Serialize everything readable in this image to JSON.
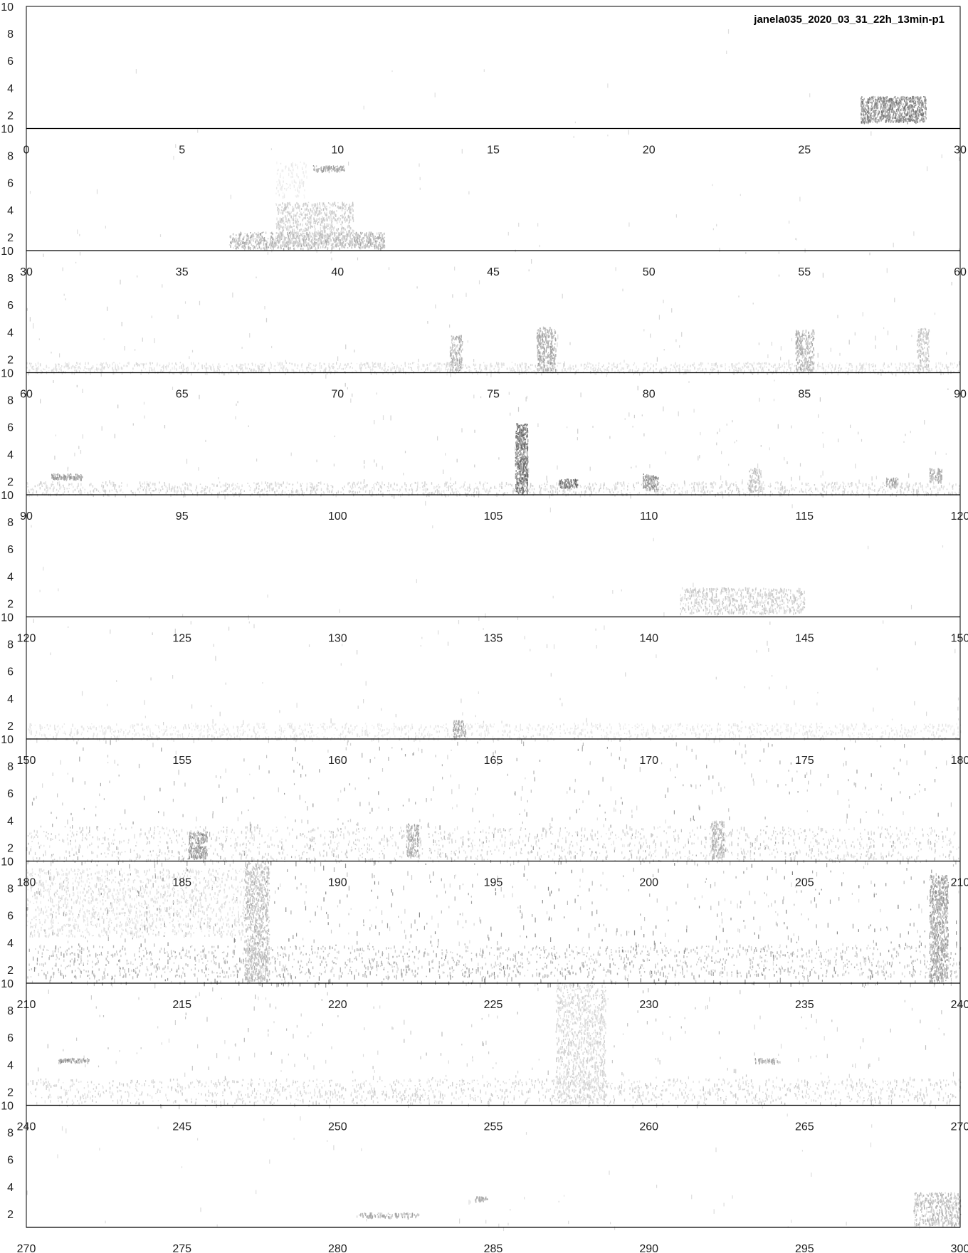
{
  "chart_data": {
    "type": "heatmap",
    "subtype": "spectrogram",
    "title": "janela035_2020_03_31_22h_13min-p1",
    "xlabel": "",
    "ylabel": "",
    "grid": false,
    "colors": {
      "background": "#ffffff",
      "ink": "#000000",
      "text": "#222222"
    },
    "y_ticks": [
      "2",
      "4",
      "6",
      "8",
      "10"
    ],
    "rows": [
      {
        "xlim": [
          0,
          30
        ],
        "x_ticks": [
          "0",
          "5",
          "10",
          "15",
          "20",
          "25",
          "30"
        ],
        "noise_level": 0.005,
        "events": [
          {
            "t": [
              26.8,
              28.9
            ],
            "f": [
              1.5,
              3.4
            ],
            "d": 0.7
          }
        ]
      },
      {
        "xlim": [
          30,
          60
        ],
        "x_ticks": [
          "30",
          "35",
          "40",
          "45",
          "50",
          "55",
          "60"
        ],
        "noise_level": 0.02,
        "events": [
          {
            "t": [
              36.5,
              41.5
            ],
            "f": [
              1.2,
              2.4
            ],
            "d": 0.45
          },
          {
            "t": [
              38.0,
              40.5
            ],
            "f": [
              1.4,
              4.6
            ],
            "d": 0.3
          },
          {
            "t": [
              39.2,
              40.2
            ],
            "f": [
              6.9,
              7.3
            ],
            "d": 0.55
          },
          {
            "t": [
              38.0,
              39.0
            ],
            "f": [
              5.0,
              7.6
            ],
            "d": 0.12
          }
        ]
      },
      {
        "xlim": [
          60,
          90
        ],
        "x_ticks": [
          "60",
          "65",
          "70",
          "75",
          "80",
          "85",
          "90"
        ],
        "noise_level": 0.06,
        "events": [
          {
            "t": [
              60.0,
              90.0
            ],
            "f": [
              1.0,
              1.8
            ],
            "d": 0.2
          },
          {
            "t": [
              73.6,
              74.0
            ],
            "f": [
              1.2,
              3.8
            ],
            "d": 0.45
          },
          {
            "t": [
              76.4,
              77.0
            ],
            "f": [
              1.2,
              4.4
            ],
            "d": 0.5
          },
          {
            "t": [
              84.7,
              85.3
            ],
            "f": [
              1.2,
              4.2
            ],
            "d": 0.45
          },
          {
            "t": [
              88.6,
              89.0
            ],
            "f": [
              1.2,
              4.3
            ],
            "d": 0.35
          }
        ]
      },
      {
        "xlim": [
          90,
          120
        ],
        "x_ticks": [
          "90",
          "95",
          "100",
          "105",
          "110",
          "115",
          "120"
        ],
        "noise_level": 0.08,
        "events": [
          {
            "t": [
              90.0,
              120.0
            ],
            "f": [
              1.0,
              2.0
            ],
            "d": 0.25
          },
          {
            "t": [
              90.8,
              91.8
            ],
            "f": [
              2.2,
              2.6
            ],
            "d": 0.6
          },
          {
            "t": [
              105.7,
              106.1
            ],
            "f": [
              1.2,
              6.3
            ],
            "d": 0.8
          },
          {
            "t": [
              107.1,
              107.7
            ],
            "f": [
              1.6,
              2.2
            ],
            "d": 0.8
          },
          {
            "t": [
              109.8,
              110.3
            ],
            "f": [
              1.4,
              2.6
            ],
            "d": 0.6
          },
          {
            "t": [
              113.2,
              113.6
            ],
            "f": [
              1.3,
              3.0
            ],
            "d": 0.4
          },
          {
            "t": [
              117.6,
              118.0
            ],
            "f": [
              1.6,
              2.3
            ],
            "d": 0.5
          },
          {
            "t": [
              119.0,
              119.4
            ],
            "f": [
              2.0,
              3.0
            ],
            "d": 0.5
          }
        ]
      },
      {
        "xlim": [
          120,
          150
        ],
        "x_ticks": [
          "120",
          "125",
          "130",
          "135",
          "140",
          "145",
          "150"
        ],
        "noise_level": 0.01,
        "events": [
          {
            "t": [
              141.0,
              145.0
            ],
            "f": [
              1.3,
              3.2
            ],
            "d": 0.3
          }
        ]
      },
      {
        "xlim": [
          150,
          180
        ],
        "x_ticks": [
          "150",
          "155",
          "160",
          "165",
          "170",
          "175",
          "180"
        ],
        "noise_level": 0.05,
        "events": [
          {
            "t": [
              150.0,
              180.0
            ],
            "f": [
              1.0,
              2.2
            ],
            "d": 0.15
          },
          {
            "t": [
              163.7,
              164.1
            ],
            "f": [
              1.2,
              2.4
            ],
            "d": 0.5
          }
        ]
      },
      {
        "xlim": [
          180,
          210
        ],
        "x_ticks": [
          "180",
          "185",
          "190",
          "195",
          "200",
          "205",
          "210"
        ],
        "noise_level": 0.25,
        "events": [
          {
            "t": [
              180.0,
              210.0
            ],
            "f": [
              1.0,
              3.6
            ],
            "d": 0.25
          },
          {
            "t": [
              185.2,
              185.8
            ],
            "f": [
              1.2,
              3.2
            ],
            "d": 0.6
          },
          {
            "t": [
              192.2,
              192.6
            ],
            "f": [
              1.4,
              3.8
            ],
            "d": 0.5
          },
          {
            "t": [
              202.0,
              202.4
            ],
            "f": [
              1.2,
              4.0
            ],
            "d": 0.45
          }
        ]
      },
      {
        "xlim": [
          210,
          240
        ],
        "x_ticks": [
          "210",
          "215",
          "220",
          "225",
          "230",
          "235",
          "240"
        ],
        "noise_level": 0.38,
        "events": [
          {
            "t": [
              210.0,
              240.0
            ],
            "f": [
              1.5,
              3.8
            ],
            "d": 0.4
          },
          {
            "t": [
              210.0,
              217.0
            ],
            "f": [
              4.5,
              9.5
            ],
            "d": 0.2
          },
          {
            "t": [
              217.0,
              217.8
            ],
            "f": [
              1.2,
              10.0
            ],
            "d": 0.4
          },
          {
            "t": [
              239.0,
              239.6
            ],
            "f": [
              1.2,
              9.0
            ],
            "d": 0.55
          }
        ]
      },
      {
        "xlim": [
          240,
          270
        ],
        "x_ticks": [
          "240",
          "245",
          "250",
          "255",
          "260",
          "265",
          "270"
        ],
        "noise_level": 0.14,
        "events": [
          {
            "t": [
              240.0,
              270.0
            ],
            "f": [
              1.2,
              3.0
            ],
            "d": 0.25
          },
          {
            "t": [
              241.0,
              242.0
            ],
            "f": [
              4.2,
              4.5
            ],
            "d": 0.6
          },
          {
            "t": [
              257.0,
              258.6
            ],
            "f": [
              1.2,
              10.0
            ],
            "d": 0.25
          },
          {
            "t": [
              263.4,
              264.2
            ],
            "f": [
              4.2,
              4.5
            ],
            "d": 0.5
          }
        ]
      },
      {
        "xlim": [
          270,
          300
        ],
        "x_ticks": [
          "270",
          "275",
          "280",
          "285",
          "290",
          "295",
          "300"
        ],
        "noise_level": 0.02,
        "events": [
          {
            "t": [
              280.6,
              282.6
            ],
            "f": [
              1.8,
              2.1
            ],
            "d": 0.5
          },
          {
            "t": [
              284.4,
              284.8
            ],
            "f": [
              3.0,
              3.3
            ],
            "d": 0.5
          },
          {
            "t": [
              298.5,
              300.0
            ],
            "f": [
              1.2,
              3.6
            ],
            "d": 0.4
          }
        ]
      }
    ]
  }
}
